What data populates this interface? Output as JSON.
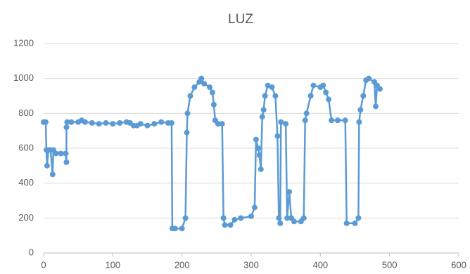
{
  "chart_data": {
    "type": "line",
    "title": "LUZ",
    "color": "#5b9bd5",
    "grid": true,
    "markers": true,
    "xlim": [
      0,
      600
    ],
    "xticks": [
      0,
      100,
      200,
      300,
      400,
      500,
      600
    ],
    "ylim": [
      0,
      1200
    ],
    "yticks": [
      0,
      200,
      400,
      600,
      800,
      1000,
      1200
    ],
    "x": [
      0,
      3,
      4,
      5,
      7,
      10,
      13,
      14,
      18,
      25,
      32,
      33,
      33,
      34,
      40,
      50,
      55,
      60,
      70,
      80,
      90,
      100,
      110,
      120,
      125,
      130,
      135,
      140,
      150,
      160,
      170,
      180,
      185,
      186,
      190,
      200,
      205,
      207,
      208,
      212,
      218,
      225,
      228,
      232,
      240,
      244,
      246,
      248,
      252,
      258,
      260,
      262,
      270,
      276,
      285,
      300,
      305,
      307,
      310,
      312,
      314,
      316,
      318,
      320,
      324,
      330,
      335,
      338,
      340,
      342,
      343,
      350,
      352,
      355,
      358,
      362,
      372,
      376,
      378,
      380,
      386,
      390,
      400,
      404,
      408,
      412,
      416,
      425,
      436,
      438,
      450,
      455,
      456,
      458,
      462,
      466,
      470,
      478,
      480,
      482,
      486
    ],
    "values": [
      750,
      750,
      590,
      500,
      590,
      590,
      450,
      590,
      570,
      570,
      570,
      520,
      720,
      750,
      750,
      750,
      760,
      750,
      745,
      740,
      745,
      740,
      745,
      750,
      745,
      730,
      730,
      740,
      730,
      740,
      750,
      745,
      745,
      140,
      140,
      140,
      200,
      690,
      800,
      900,
      950,
      980,
      1000,
      970,
      950,
      920,
      850,
      760,
      740,
      740,
      200,
      160,
      160,
      190,
      200,
      210,
      260,
      650,
      600,
      560,
      480,
      780,
      820,
      900,
      960,
      950,
      900,
      670,
      200,
      170,
      750,
      740,
      200,
      350,
      200,
      180,
      180,
      200,
      760,
      800,
      900,
      960,
      950,
      960,
      920,
      880,
      760,
      760,
      760,
      170,
      170,
      200,
      750,
      820,
      900,
      990,
      1000,
      980,
      840,
      960,
      940
    ]
  }
}
